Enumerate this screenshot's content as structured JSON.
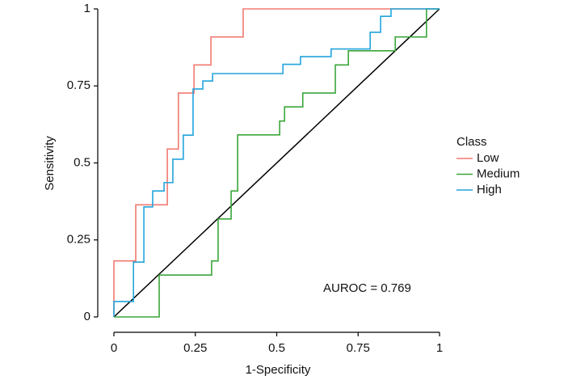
{
  "chart_data": {
    "type": "line",
    "xlabel": "1-Specificity",
    "ylabel": "Sensitivity",
    "legend_title": "Class",
    "legend": "right",
    "annotation": "AUROC = 0.769",
    "xlim": [
      0,
      1
    ],
    "ylim": [
      0,
      1
    ],
    "xticks": [
      0,
      0.25,
      0.5,
      0.75,
      1
    ],
    "yticks": [
      0,
      0.25,
      0.5,
      0.75,
      1
    ],
    "series": [
      {
        "name": "Low",
        "color": "#f07a70",
        "x": [
          0,
          0,
          0.067,
          0.067,
          0.164,
          0.164,
          0.198,
          0.198,
          0.246,
          0.246,
          0.298,
          0.298,
          0.397,
          0.397,
          1
        ],
        "values": [
          0,
          0.182,
          0.182,
          0.364,
          0.364,
          0.545,
          0.545,
          0.727,
          0.727,
          0.818,
          0.818,
          0.909,
          0.909,
          1,
          1
        ]
      },
      {
        "name": "Medium",
        "color": "#3aa63a",
        "x": [
          0,
          0.139,
          0.139,
          0.3,
          0.3,
          0.32,
          0.32,
          0.36,
          0.36,
          0.38,
          0.38,
          0.509,
          0.509,
          0.524,
          0.524,
          0.58,
          0.58,
          0.68,
          0.68,
          0.72,
          0.72,
          0.864,
          0.864,
          0.96,
          0.96,
          1
        ],
        "values": [
          0,
          0,
          0.136,
          0.136,
          0.182,
          0.182,
          0.318,
          0.318,
          0.409,
          0.409,
          0.591,
          0.591,
          0.636,
          0.636,
          0.682,
          0.682,
          0.727,
          0.727,
          0.818,
          0.818,
          0.864,
          0.864,
          0.909,
          0.909,
          1,
          1
        ]
      },
      {
        "name": "High",
        "color": "#22a4dc",
        "x": [
          0,
          0,
          0.06,
          0.06,
          0.092,
          0.092,
          0.119,
          0.119,
          0.154,
          0.154,
          0.181,
          0.181,
          0.213,
          0.213,
          0.243,
          0.243,
          0.273,
          0.273,
          0.303,
          0.303,
          0.519,
          0.519,
          0.573,
          0.573,
          0.667,
          0.667,
          0.787,
          0.787,
          0.819,
          0.819,
          0.851,
          0.851,
          1
        ],
        "values": [
          0,
          0.05,
          0.05,
          0.178,
          0.178,
          0.357,
          0.357,
          0.409,
          0.409,
          0.436,
          0.436,
          0.512,
          0.512,
          0.59,
          0.59,
          0.74,
          0.74,
          0.766,
          0.766,
          0.79,
          0.79,
          0.82,
          0.82,
          0.845,
          0.845,
          0.87,
          0.87,
          0.924,
          0.924,
          0.976,
          0.976,
          1,
          1
        ]
      }
    ]
  }
}
